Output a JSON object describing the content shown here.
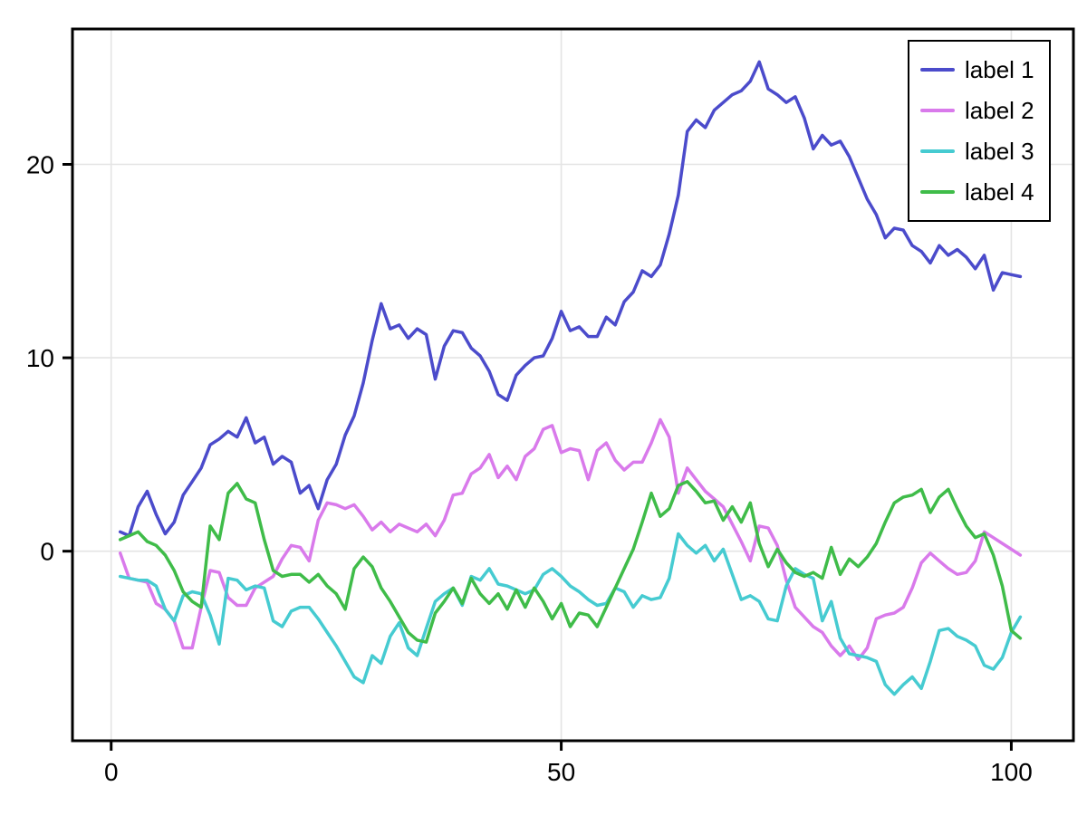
{
  "figure": {
    "background": "#ffffff"
  },
  "chart_data": {
    "type": "line",
    "title": "",
    "xlabel": "",
    "ylabel": "",
    "xlim": [
      -4.3,
      106.9
    ],
    "ylim": [
      -9.8,
      27.0
    ],
    "xticks": [
      0,
      50,
      100
    ],
    "yticks": [
      0,
      10,
      20
    ],
    "grid": true,
    "grid_color": "#e4e4e4",
    "axis_color": "#000000",
    "tick_label_color": "#000000",
    "legend": {
      "position": "top-right",
      "border_color": "#000000",
      "background": "#ffffff"
    },
    "x": [
      1,
      2,
      3,
      4,
      5,
      6,
      7,
      8,
      9,
      10,
      11,
      12,
      13,
      14,
      15,
      16,
      17,
      18,
      19,
      20,
      21,
      22,
      23,
      24,
      25,
      26,
      27,
      28,
      29,
      30,
      31,
      32,
      33,
      34,
      35,
      36,
      37,
      38,
      39,
      40,
      41,
      42,
      43,
      44,
      45,
      46,
      47,
      48,
      49,
      50,
      51,
      52,
      53,
      54,
      55,
      56,
      57,
      58,
      59,
      60,
      61,
      62,
      63,
      64,
      65,
      66,
      67,
      68,
      69,
      70,
      71,
      72,
      73,
      74,
      75,
      76,
      77,
      78,
      79,
      80,
      81,
      82,
      83,
      84,
      85,
      86,
      87,
      88,
      89,
      90,
      91,
      92,
      93,
      94,
      95,
      96,
      97,
      98,
      99,
      100,
      101
    ],
    "series": [
      {
        "name": "label 1",
        "color": "#4B4BCB",
        "values": [
          1.0,
          0.8,
          2.3,
          3.1,
          1.9,
          0.9,
          1.5,
          2.9,
          3.6,
          4.3,
          5.5,
          5.8,
          6.2,
          5.9,
          6.9,
          5.6,
          5.9,
          4.5,
          4.9,
          4.6,
          3.0,
          3.4,
          2.2,
          3.7,
          4.5,
          6.0,
          7.0,
          8.7,
          10.9,
          12.8,
          11.5,
          11.7,
          11.0,
          11.5,
          11.2,
          8.9,
          10.6,
          11.4,
          11.3,
          10.5,
          10.1,
          9.3,
          8.1,
          7.8,
          9.1,
          9.6,
          10.0,
          10.1,
          11.0,
          12.4,
          11.4,
          11.6,
          11.1,
          11.1,
          12.1,
          11.7,
          12.9,
          13.4,
          14.5,
          14.2,
          14.8,
          16.4,
          18.4,
          21.7,
          22.3,
          21.9,
          22.8,
          23.2,
          23.6,
          23.8,
          24.3,
          25.3,
          23.9,
          23.6,
          23.2,
          23.5,
          22.4,
          20.8,
          21.5,
          21.0,
          21.2,
          20.4,
          19.3,
          18.2,
          17.4,
          16.2,
          16.7,
          16.6,
          15.8,
          15.5,
          14.9,
          15.8,
          15.3,
          15.6,
          15.2,
          14.6,
          15.3,
          13.5,
          14.4,
          14.3,
          14.2
        ]
      },
      {
        "name": "label 2",
        "color": "#D97AEB",
        "values": [
          -0.1,
          -1.4,
          -1.5,
          -1.6,
          -2.7,
          -3.0,
          -3.6,
          -5.0,
          -5.0,
          -2.9,
          -1.0,
          -1.1,
          -2.4,
          -2.8,
          -2.8,
          -1.9,
          -1.6,
          -1.3,
          -0.4,
          0.3,
          0.2,
          -0.5,
          1.6,
          2.5,
          2.4,
          2.2,
          2.4,
          1.8,
          1.1,
          1.5,
          1.0,
          1.4,
          1.2,
          1.0,
          1.4,
          0.8,
          1.6,
          2.9,
          3.0,
          4.0,
          4.3,
          5.0,
          3.8,
          4.4,
          3.7,
          4.9,
          5.3,
          6.3,
          6.5,
          5.1,
          5.3,
          5.2,
          3.7,
          5.2,
          5.6,
          4.7,
          4.2,
          4.6,
          4.6,
          5.6,
          6.8,
          5.9,
          3.0,
          4.3,
          3.7,
          3.1,
          2.7,
          2.3,
          1.4,
          0.5,
          -0.5,
          1.3,
          1.2,
          0.3,
          -1.5,
          -2.9,
          -3.4,
          -3.9,
          -4.2,
          -4.9,
          -5.4,
          -4.9,
          -5.6,
          -5.0,
          -3.5,
          -3.3,
          -3.2,
          -2.9,
          -1.9,
          -0.6,
          -0.1,
          -0.5,
          -0.9,
          -1.2,
          -1.1,
          -0.5,
          1.0,
          0.7,
          0.4,
          0.1,
          -0.2
        ]
      },
      {
        "name": "label 3",
        "color": "#46CBD1",
        "values": [
          -1.3,
          -1.4,
          -1.5,
          -1.5,
          -1.8,
          -3.0,
          -3.6,
          -2.3,
          -2.1,
          -2.2,
          -3.3,
          -4.8,
          -1.4,
          -1.5,
          -2.0,
          -1.8,
          -1.9,
          -3.6,
          -3.9,
          -3.1,
          -2.9,
          -2.9,
          -3.5,
          -4.2,
          -4.9,
          -5.7,
          -6.5,
          -6.8,
          -5.4,
          -5.8,
          -4.4,
          -3.7,
          -5.0,
          -5.4,
          -4.0,
          -2.6,
          -2.2,
          -1.9,
          -2.8,
          -1.3,
          -1.5,
          -0.9,
          -1.7,
          -1.8,
          -2.0,
          -2.2,
          -2.0,
          -1.2,
          -0.9,
          -1.3,
          -1.8,
          -2.1,
          -2.5,
          -2.8,
          -2.7,
          -1.9,
          -2.1,
          -2.9,
          -2.3,
          -2.5,
          -2.4,
          -1.4,
          0.9,
          0.3,
          -0.1,
          0.3,
          -0.5,
          0.1,
          -1.2,
          -2.5,
          -2.3,
          -2.6,
          -3.5,
          -3.6,
          -1.8,
          -0.9,
          -1.2,
          -1.4,
          -3.6,
          -2.6,
          -4.5,
          -5.3,
          -5.4,
          -5.5,
          -5.7,
          -6.9,
          -7.4,
          -6.9,
          -6.5,
          -7.1,
          -5.7,
          -4.1,
          -4.0,
          -4.4,
          -4.6,
          -4.9,
          -5.9,
          -6.1,
          -5.5,
          -4.2,
          -3.4
        ]
      },
      {
        "name": "label 4",
        "color": "#3FBC49",
        "values": [
          0.6,
          0.8,
          1.0,
          0.5,
          0.3,
          -0.2,
          -1.0,
          -2.1,
          -2.6,
          -2.9,
          1.3,
          0.6,
          3.0,
          3.5,
          2.7,
          2.5,
          0.6,
          -1.0,
          -1.3,
          -1.2,
          -1.2,
          -1.6,
          -1.2,
          -1.8,
          -2.2,
          -3.0,
          -0.9,
          -0.3,
          -0.8,
          -1.9,
          -2.6,
          -3.4,
          -4.2,
          -4.6,
          -4.7,
          -3.2,
          -2.6,
          -1.9,
          -2.7,
          -1.4,
          -2.2,
          -2.7,
          -2.2,
          -3.0,
          -2.0,
          -2.9,
          -1.9,
          -2.6,
          -3.5,
          -2.7,
          -3.9,
          -3.2,
          -3.3,
          -3.9,
          -2.9,
          -1.9,
          -0.9,
          0.1,
          1.5,
          3.0,
          1.8,
          2.2,
          3.4,
          3.6,
          3.1,
          2.5,
          2.6,
          1.6,
          2.3,
          1.5,
          2.5,
          0.4,
          -0.8,
          0.1,
          -0.6,
          -1.1,
          -1.3,
          -1.1,
          -1.4,
          0.2,
          -1.2,
          -0.4,
          -0.8,
          -0.3,
          0.4,
          1.5,
          2.5,
          2.8,
          2.9,
          3.2,
          2.0,
          2.8,
          3.2,
          2.2,
          1.3,
          0.7,
          0.9,
          -0.2,
          -1.8,
          -4.1,
          -4.5
        ]
      }
    ]
  }
}
